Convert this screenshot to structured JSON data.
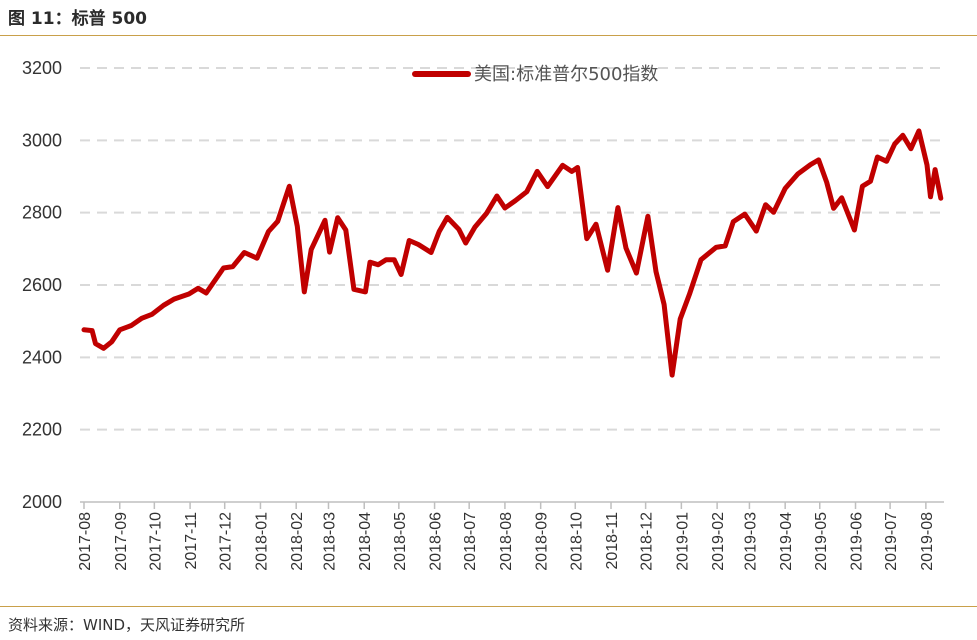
{
  "figure": {
    "title": "图 11：标普 500",
    "source": "资料来源：WIND，天风证券研究所"
  },
  "colors": {
    "line": "#c00000",
    "grid": "#d9d9d9",
    "rule": "#c9a04a"
  },
  "chart_data": {
    "type": "line",
    "title": "",
    "xlabel": "",
    "ylabel": "",
    "ylim": [
      2000,
      3200
    ],
    "yticks": [
      2000,
      2200,
      2400,
      2600,
      2800,
      3000,
      3200
    ],
    "grid": "horizontal dashed",
    "legend_position": "top-center",
    "x_tick_labels": [
      "2017-08",
      "2017-09",
      "2017-10",
      "2017-11",
      "2017-12",
      "2018-01",
      "2018-02",
      "2018-03",
      "2018-04",
      "2018-05",
      "2018-06",
      "2018-07",
      "2018-08",
      "2018-09",
      "2018-10",
      "2018-11",
      "2018-12",
      "2019-01",
      "2019-02",
      "2019-03",
      "2019-04",
      "2019-05",
      "2019-06",
      "2019-07",
      "2019-08"
    ],
    "series": [
      {
        "name": "美国:标准普尔500指数",
        "color": "#c00000",
        "x": [
          "2017-08-01",
          "2017-08-08",
          "2017-08-11",
          "2017-08-18",
          "2017-08-25",
          "2017-09-01",
          "2017-09-11",
          "2017-09-20",
          "2017-09-29",
          "2017-10-09",
          "2017-10-18",
          "2017-10-31",
          "2017-11-08",
          "2017-11-15",
          "2017-11-30",
          "2017-12-08",
          "2017-12-18",
          "2017-12-29",
          "2018-01-08",
          "2018-01-16",
          "2018-01-26",
          "2018-02-02",
          "2018-02-08",
          "2018-02-14",
          "2018-02-26",
          "2018-03-02",
          "2018-03-09",
          "2018-03-16",
          "2018-03-23",
          "2018-04-02",
          "2018-04-06",
          "2018-04-13",
          "2018-04-20",
          "2018-04-27",
          "2018-05-03",
          "2018-05-10",
          "2018-05-18",
          "2018-05-29",
          "2018-06-05",
          "2018-06-12",
          "2018-06-22",
          "2018-06-28",
          "2018-07-06",
          "2018-07-16",
          "2018-07-25",
          "2018-08-01",
          "2018-08-10",
          "2018-08-20",
          "2018-08-29",
          "2018-09-07",
          "2018-09-20",
          "2018-09-28",
          "2018-10-03",
          "2018-10-11",
          "2018-10-19",
          "2018-10-29",
          "2018-11-07",
          "2018-11-14",
          "2018-11-23",
          "2018-12-03",
          "2018-12-10",
          "2018-12-17",
          "2018-12-24",
          "2018-12-31",
          "2019-01-08",
          "2019-01-18",
          "2019-01-31",
          "2019-02-08",
          "2019-02-15",
          "2019-02-25",
          "2019-03-07",
          "2019-03-15",
          "2019-03-22",
          "2019-04-01",
          "2019-04-12",
          "2019-04-23",
          "2019-04-30",
          "2019-05-07",
          "2019-05-13",
          "2019-05-20",
          "2019-05-31",
          "2019-06-07",
          "2019-06-14",
          "2019-06-20",
          "2019-06-28",
          "2019-07-05",
          "2019-07-12",
          "2019-07-19",
          "2019-07-26",
          "2019-08-02",
          "2019-08-05",
          "2019-08-09",
          "2019-08-14"
        ],
        "values": [
          2476,
          2474,
          2438,
          2425,
          2443,
          2476,
          2488,
          2508,
          2519,
          2544,
          2561,
          2575,
          2591,
          2578,
          2647,
          2651,
          2690,
          2674,
          2748,
          2776,
          2873,
          2762,
          2581,
          2698,
          2779,
          2691,
          2786,
          2752,
          2588,
          2581,
          2663,
          2656,
          2670,
          2670,
          2629,
          2723,
          2712,
          2690,
          2748,
          2787,
          2754,
          2716,
          2760,
          2798,
          2846,
          2813,
          2833,
          2858,
          2914,
          2872,
          2931,
          2914,
          2925,
          2728,
          2768,
          2641,
          2814,
          2702,
          2633,
          2790,
          2637,
          2546,
          2351,
          2506,
          2574,
          2670,
          2704,
          2708,
          2775,
          2796,
          2749,
          2822,
          2801,
          2867,
          2907,
          2933,
          2946,
          2884,
          2812,
          2841,
          2752,
          2873,
          2887,
          2954,
          2942,
          2990,
          3014,
          2977,
          3026,
          2932,
          2844,
          2919,
          2840
        ]
      }
    ]
  }
}
